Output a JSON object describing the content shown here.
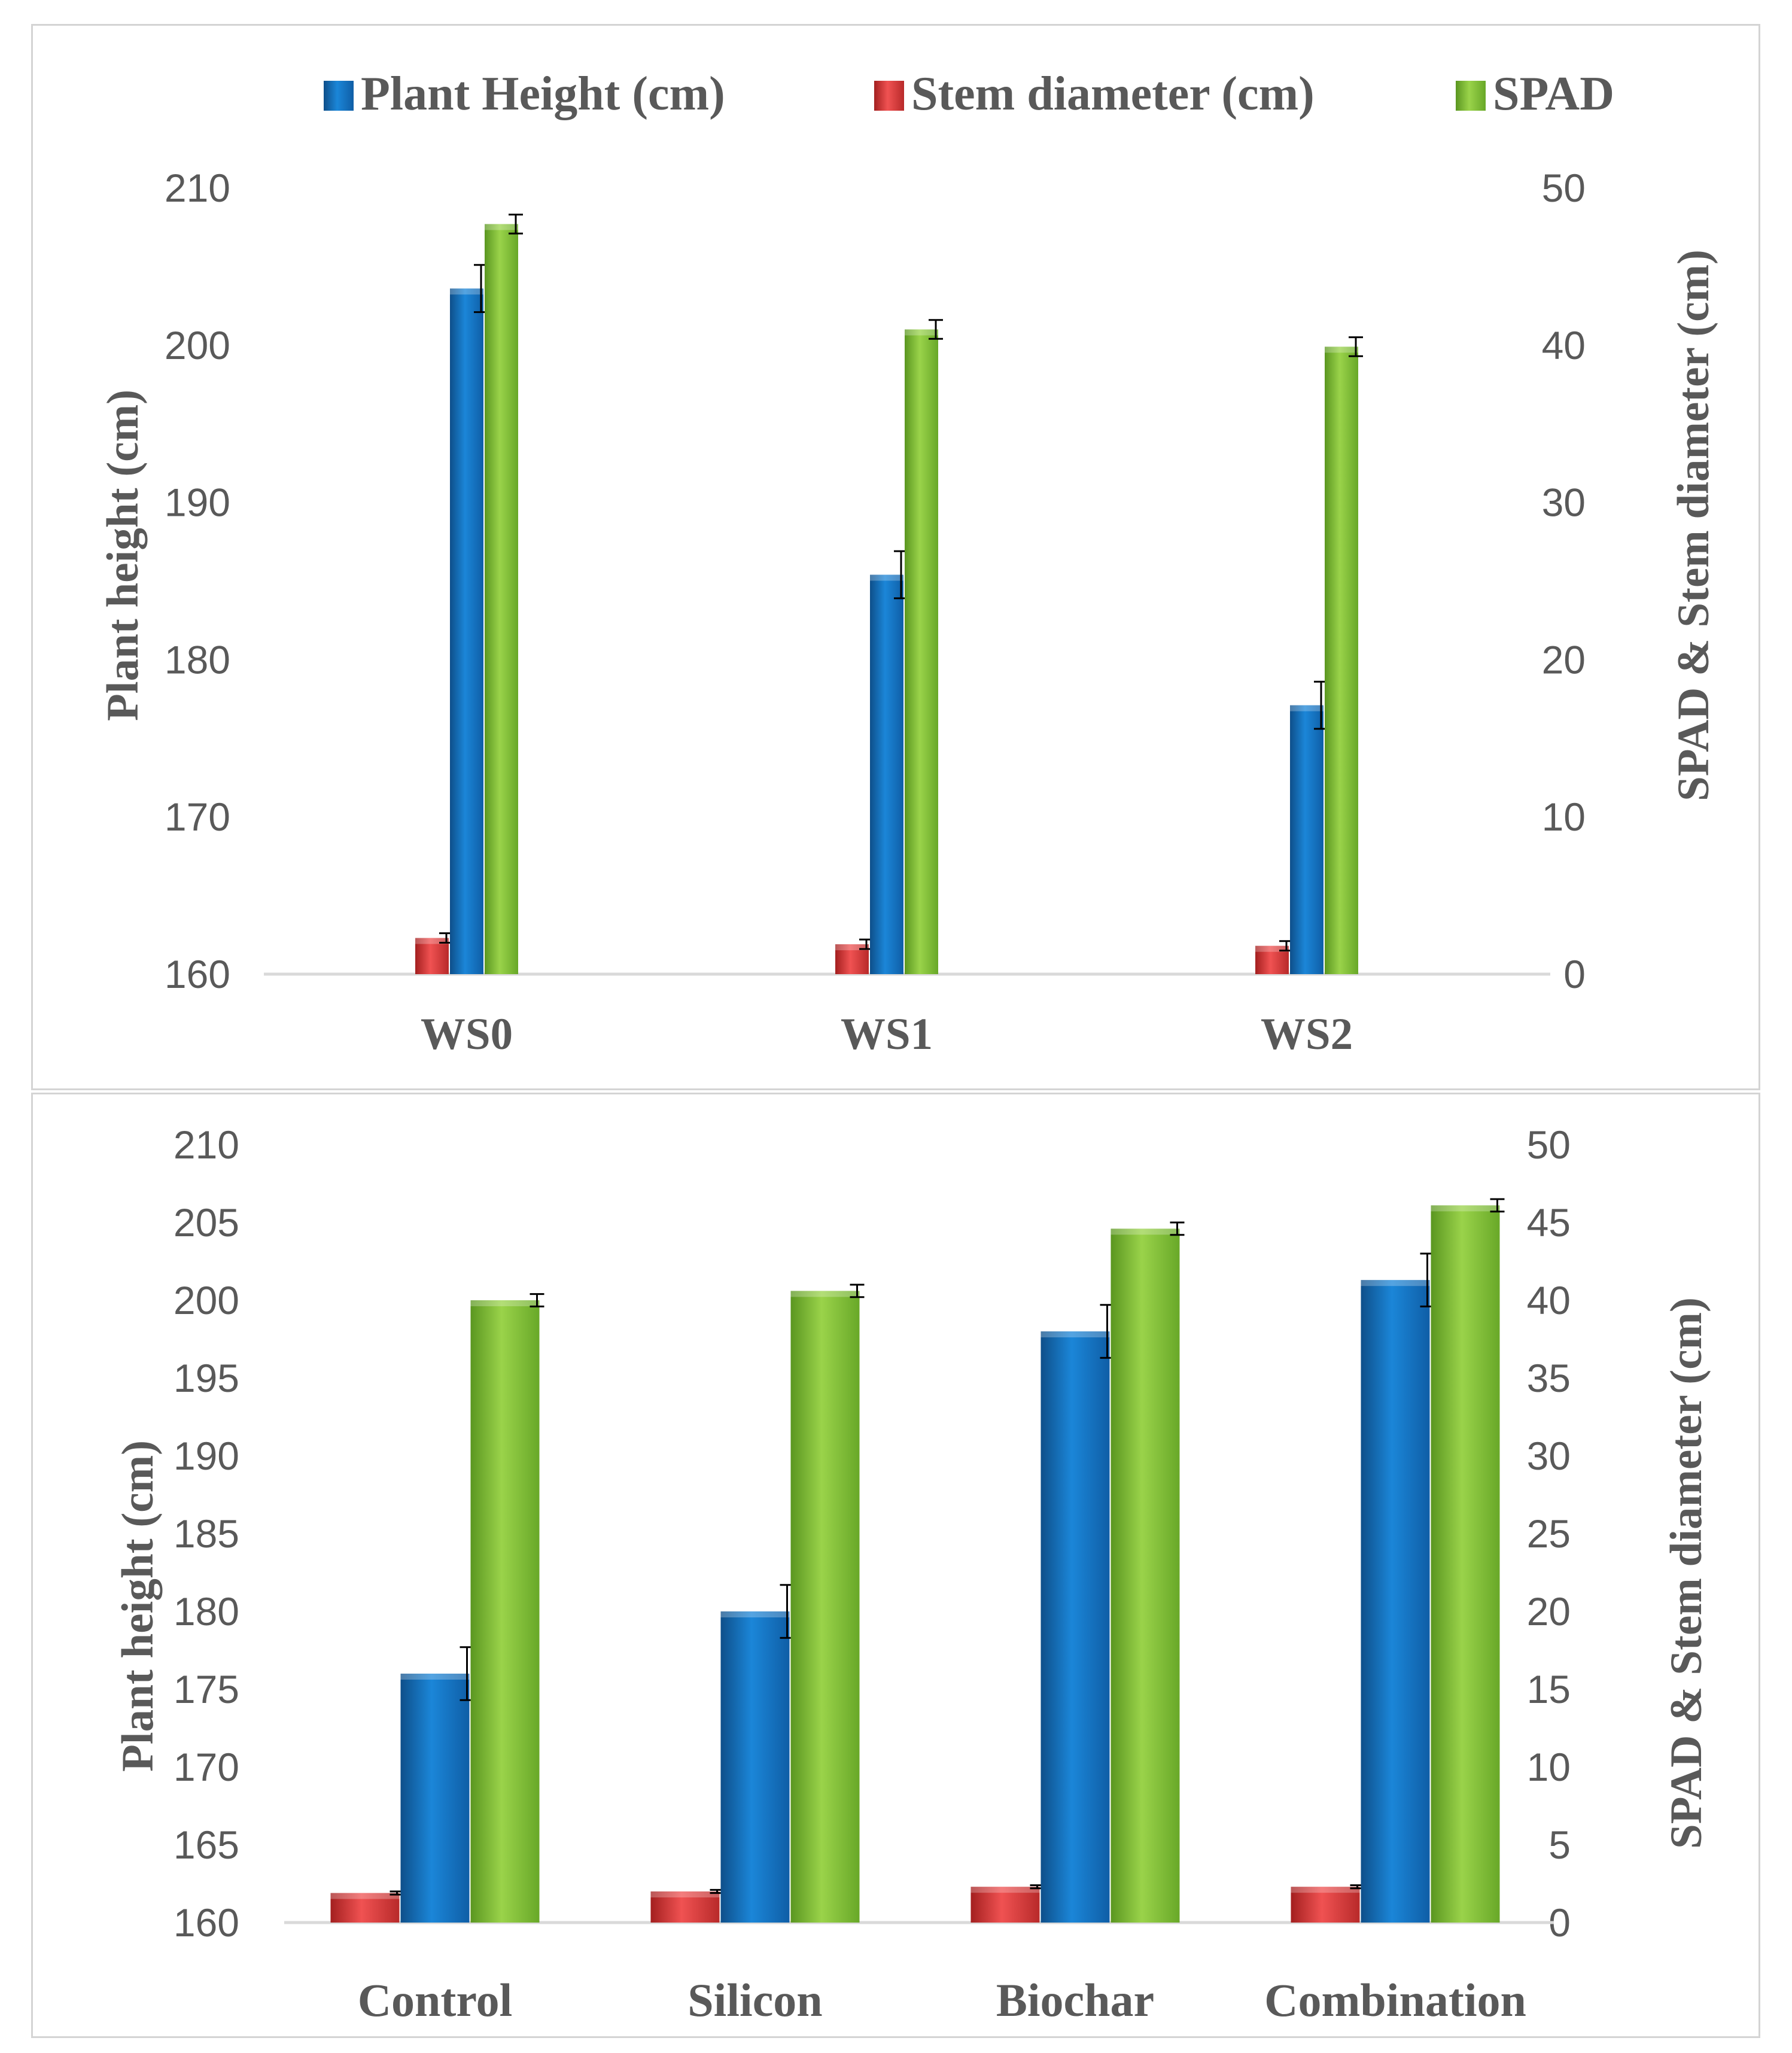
{
  "colors": {
    "height": "#1474c4",
    "stem": "#e03c3c",
    "spad": "#7cbc32",
    "axis_text": "#595959",
    "axis_line": "#d9d9d9",
    "error_bar": "#000000"
  },
  "legend": [
    {
      "key": "height",
      "label": "Plant Height (cm)"
    },
    {
      "key": "stem",
      "label": "Stem diameter (cm)"
    },
    {
      "key": "spad",
      "label": "SPAD"
    }
  ],
  "chart_data": [
    {
      "type": "bar",
      "title": "",
      "categories": [
        "WS0",
        "WS1",
        "WS2"
      ],
      "ylabel": "Plant height (cm)",
      "y2label": "SPAD & Stem diameter (cm)",
      "ylim": [
        160,
        210
      ],
      "y2lim": [
        0,
        50
      ],
      "yticks": [
        "210",
        "200",
        "190",
        "180",
        "170",
        "160"
      ],
      "y2ticks": [
        "50",
        "40",
        "30",
        "20",
        "10",
        "0"
      ],
      "legend_position": "top",
      "series": [
        {
          "name": "Plant Height (cm)",
          "key": "height",
          "axis": "left",
          "values": [
            203.6,
            185.4,
            177.1
          ],
          "errors": [
            1.5,
            1.5,
            1.5
          ]
        },
        {
          "name": "Stem diameter (cm)",
          "key": "stem",
          "axis": "right",
          "values": [
            2.3,
            1.9,
            1.8
          ],
          "errors": [
            0.3,
            0.3,
            0.3
          ]
        },
        {
          "name": "SPAD",
          "key": "spad",
          "axis": "right",
          "values": [
            47.7,
            41.0,
            39.9
          ],
          "errors": [
            0.6,
            0.6,
            0.6
          ]
        }
      ]
    },
    {
      "type": "bar",
      "title": "",
      "categories": [
        "Control",
        "Silicon",
        "Biochar",
        "Combination"
      ],
      "ylabel": "Plant height (cm)",
      "y2label": "SPAD & Stem diameter (cm)",
      "ylim": [
        160,
        210
      ],
      "y2lim": [
        0,
        50
      ],
      "yticks": [
        "210",
        "205",
        "200",
        "195",
        "190",
        "185",
        "180",
        "175",
        "170",
        "165",
        "160"
      ],
      "y2ticks": [
        "50",
        "45",
        "40",
        "35",
        "30",
        "25",
        "20",
        "15",
        "10",
        "5",
        "0"
      ],
      "legend_position": "none",
      "series": [
        {
          "name": "Plant Height (cm)",
          "key": "height",
          "axis": "left",
          "values": [
            176.0,
            180.0,
            198.0,
            201.3
          ],
          "errors": [
            1.7,
            1.7,
            1.7,
            1.7
          ]
        },
        {
          "name": "Stem diameter (cm)",
          "key": "stem",
          "axis": "right",
          "values": [
            1.9,
            2.0,
            2.3,
            2.3
          ],
          "errors": [
            0.1,
            0.1,
            0.1,
            0.1
          ]
        },
        {
          "name": "SPAD",
          "key": "spad",
          "axis": "right",
          "values": [
            40.0,
            40.6,
            44.6,
            46.1
          ],
          "errors": [
            0.4,
            0.4,
            0.4,
            0.4
          ]
        }
      ]
    }
  ]
}
